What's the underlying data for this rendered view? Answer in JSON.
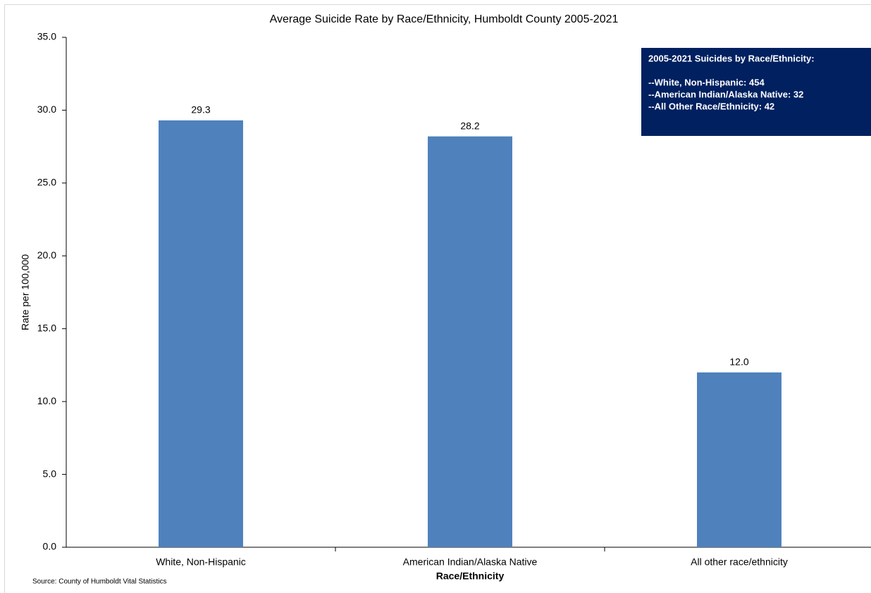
{
  "chart_data": {
    "type": "bar",
    "title": "Average Suicide Rate by Race/Ethnicity, Humboldt County 2005-2021",
    "x_label": "Race/Ethnicity",
    "y_label": "Rate per 100,000",
    "categories": [
      "White, Non-Hispanic",
      "American Indian/Alaska Native",
      "All other race/ethnicity"
    ],
    "values": [
      29.3,
      28.2,
      12.0
    ],
    "value_labels": [
      "29.3",
      "28.2",
      "12.0"
    ],
    "color": "#4f81bd",
    "ylim": [
      0,
      35
    ],
    "yticks": [
      {
        "value": 0,
        "label": "0.0"
      },
      {
        "value": 5,
        "label": "5.0"
      },
      {
        "value": 10,
        "label": "10.0"
      },
      {
        "value": 15,
        "label": "15.0"
      },
      {
        "value": 20,
        "label": "20.0"
      },
      {
        "value": 25,
        "label": "25.0"
      },
      {
        "value": 30,
        "label": "30.0"
      },
      {
        "value": 35,
        "label": "35.0"
      }
    ],
    "grid": false,
    "annotation": {
      "title": "2005-2021 Suicides by Race/Ethnicity:",
      "lines": [
        "--White, Non-Hispanic:  454",
        "--American Indian/Alaska Native:  32",
        "--All Other Race/Ethnicity:  42"
      ],
      "color": "#002060"
    },
    "source": "Source:  County of Humboldt  Vital Statistics"
  }
}
